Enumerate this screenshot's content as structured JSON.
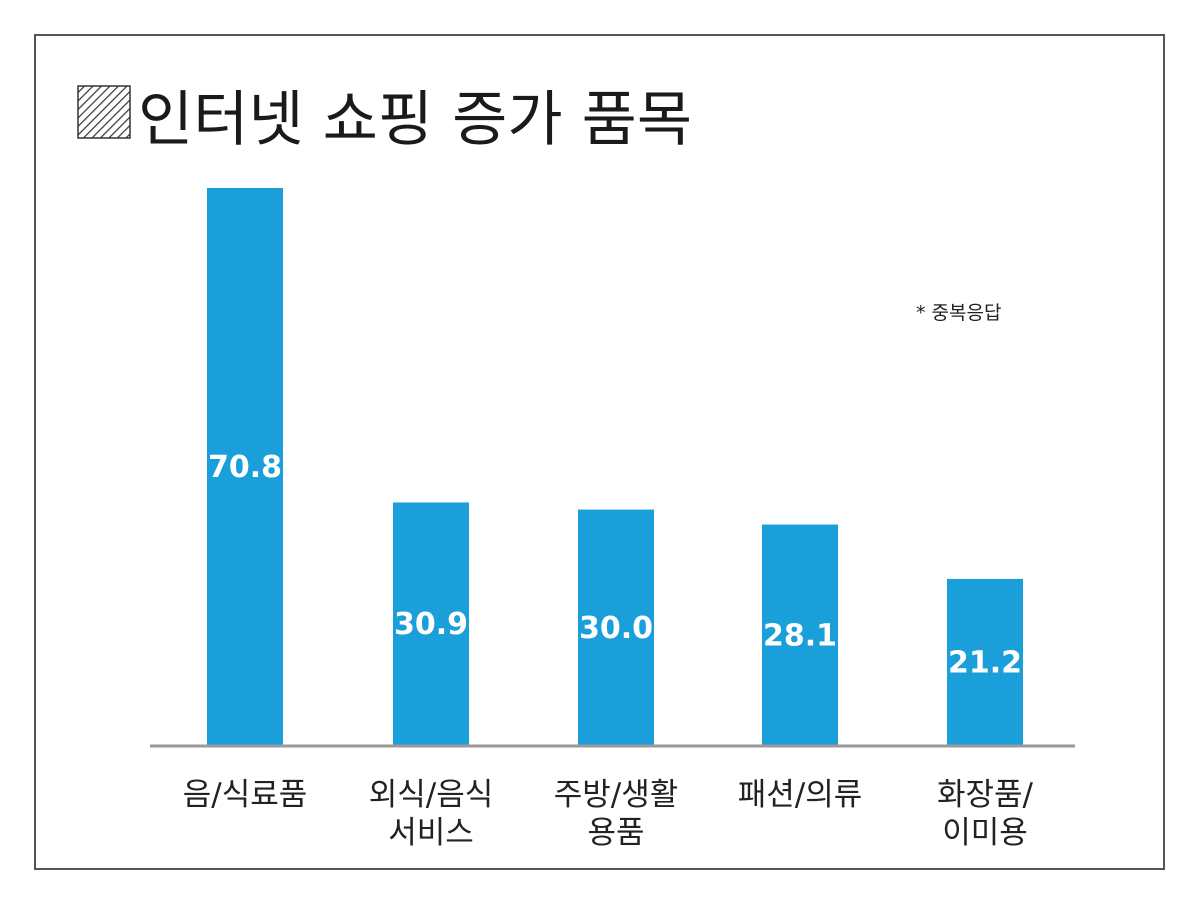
{
  "chart_data": {
    "type": "bar",
    "title": "인터넷 쇼핑 증가 품목",
    "note": "* 중복응답",
    "categories": [
      [
        "음/식료품"
      ],
      [
        "외식/음식",
        "서비스"
      ],
      [
        "주방/생활",
        "용품"
      ],
      [
        "패션/의류"
      ],
      [
        "화장품/",
        "이미용"
      ]
    ],
    "values": [
      70.8,
      30.9,
      30.0,
      28.1,
      21.2
    ],
    "value_labels": [
      "70.8",
      "30.9",
      "30.0",
      "28.1",
      "21.2"
    ],
    "ylim": [
      0,
      70.8
    ],
    "grid": false,
    "bar_color": "#1a9fdb",
    "axis_color": "#9a9a9a"
  }
}
